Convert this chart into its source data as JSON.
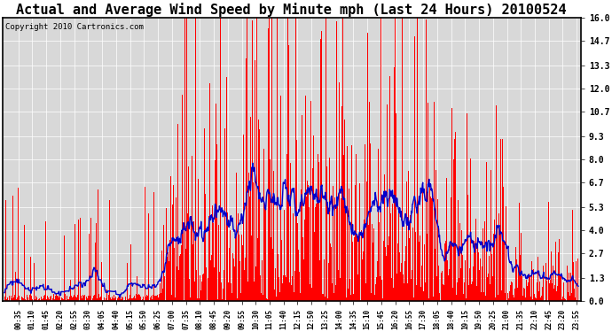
{
  "title": "Actual and Average Wind Speed by Minute mph (Last 24 Hours) 20100524",
  "copyright": "Copyright 2010 Cartronics.com",
  "yticks": [
    0.0,
    1.3,
    2.7,
    4.0,
    5.3,
    6.7,
    8.0,
    9.3,
    10.7,
    12.0,
    13.3,
    14.7,
    16.0
  ],
  "ylim": [
    0.0,
    16.0
  ],
  "bar_color": "#FF0000",
  "line_color": "#0000CC",
  "background_color": "#D8D8D8",
  "title_fontsize": 11,
  "copyright_fontsize": 6.5,
  "seed": 42
}
